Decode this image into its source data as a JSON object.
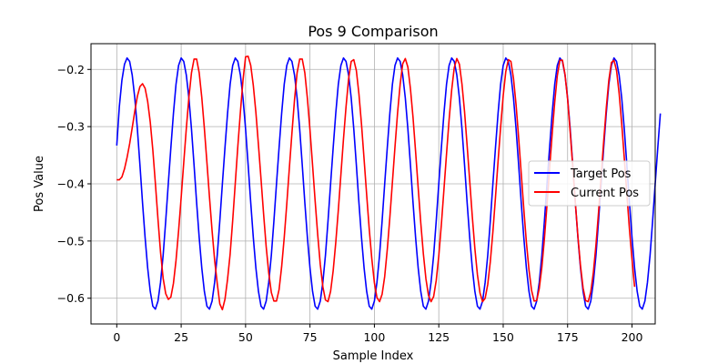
{
  "chart_data": {
    "type": "line",
    "title": "Pos 9 Comparison",
    "xlabel": "Sample Index",
    "ylabel": "Pos Value",
    "xlim": [
      -10,
      209
    ],
    "ylim": [
      -0.645,
      -0.155
    ],
    "xticks": [
      0,
      25,
      50,
      75,
      100,
      125,
      150,
      175,
      200
    ],
    "xtick_labels": [
      "0",
      "25",
      "50",
      "75",
      "100",
      "125",
      "150",
      "175",
      "200"
    ],
    "yticks": [
      -0.6,
      -0.5,
      -0.4,
      -0.3,
      -0.2
    ],
    "ytick_labels": [
      "−0.6",
      "−0.5",
      "−0.4",
      "−0.3",
      "−0.2"
    ],
    "grid": true,
    "legend_position": "center-right",
    "series": [
      {
        "name": "Target Pos",
        "color": "#0000ff",
        "x_start": 0,
        "x_step": 1,
        "values": [
          -0.333,
          -0.265,
          -0.219,
          -0.191,
          -0.18,
          -0.186,
          -0.21,
          -0.25,
          -0.304,
          -0.367,
          -0.433,
          -0.494,
          -0.547,
          -0.588,
          -0.614,
          -0.619,
          -0.605,
          -0.572,
          -0.525,
          -0.465,
          -0.4,
          -0.337,
          -0.277,
          -0.226,
          -0.193,
          -0.18,
          -0.186,
          -0.21,
          -0.25,
          -0.304,
          -0.367,
          -0.433,
          -0.494,
          -0.547,
          -0.588,
          -0.614,
          -0.619,
          -0.605,
          -0.572,
          -0.525,
          -0.465,
          -0.4,
          -0.337,
          -0.277,
          -0.226,
          -0.193,
          -0.18,
          -0.186,
          -0.21,
          -0.25,
          -0.304,
          -0.367,
          -0.433,
          -0.494,
          -0.547,
          -0.588,
          -0.614,
          -0.619,
          -0.605,
          -0.572,
          -0.525,
          -0.465,
          -0.4,
          -0.337,
          -0.277,
          -0.226,
          -0.193,
          -0.18,
          -0.186,
          -0.21,
          -0.25,
          -0.304,
          -0.367,
          -0.433,
          -0.494,
          -0.547,
          -0.588,
          -0.614,
          -0.619,
          -0.605,
          -0.572,
          -0.525,
          -0.465,
          -0.4,
          -0.337,
          -0.277,
          -0.226,
          -0.193,
          -0.18,
          -0.186,
          -0.21,
          -0.25,
          -0.304,
          -0.367,
          -0.433,
          -0.494,
          -0.547,
          -0.588,
          -0.614,
          -0.619,
          -0.605,
          -0.572,
          -0.525,
          -0.465,
          -0.4,
          -0.337,
          -0.277,
          -0.226,
          -0.193,
          -0.18,
          -0.186,
          -0.21,
          -0.25,
          -0.304,
          -0.367,
          -0.433,
          -0.494,
          -0.547,
          -0.588,
          -0.614,
          -0.619,
          -0.605,
          -0.572,
          -0.525,
          -0.465,
          -0.4,
          -0.337,
          -0.277,
          -0.226,
          -0.193,
          -0.18,
          -0.186,
          -0.21,
          -0.25,
          -0.304,
          -0.367,
          -0.433,
          -0.494,
          -0.547,
          -0.588,
          -0.614,
          -0.619,
          -0.605,
          -0.572,
          -0.525,
          -0.465,
          -0.4,
          -0.337,
          -0.277,
          -0.226,
          -0.193,
          -0.18,
          -0.186,
          -0.21,
          -0.25,
          -0.304,
          -0.367,
          -0.433,
          -0.494,
          -0.547,
          -0.588,
          -0.614,
          -0.619,
          -0.605,
          -0.572,
          -0.525,
          -0.465,
          -0.4,
          -0.337,
          -0.277,
          -0.226,
          -0.193,
          -0.18,
          -0.186,
          -0.21,
          -0.25,
          -0.304,
          -0.367,
          -0.433,
          -0.494,
          -0.547,
          -0.588,
          -0.614,
          -0.619,
          -0.605,
          -0.572,
          -0.525,
          -0.465,
          -0.4,
          -0.337,
          -0.277,
          -0.226,
          -0.193,
          -0.18,
          -0.186,
          -0.21,
          -0.25,
          -0.304,
          -0.367,
          -0.433,
          -0.494,
          -0.547,
          -0.588,
          -0.614,
          -0.619,
          -0.605,
          -0.572,
          -0.525,
          -0.465,
          -0.4,
          -0.337,
          -0.277
        ]
      },
      {
        "name": "Current Pos",
        "color": "#ff0000",
        "x_start": 0,
        "x_step": 1,
        "values": [
          -0.393,
          -0.393,
          -0.388,
          -0.374,
          -0.354,
          -0.33,
          -0.302,
          -0.273,
          -0.247,
          -0.23,
          -0.225,
          -0.233,
          -0.256,
          -0.292,
          -0.341,
          -0.4,
          -0.462,
          -0.52,
          -0.565,
          -0.592,
          -0.602,
          -0.598,
          -0.574,
          -0.534,
          -0.482,
          -0.424,
          -0.363,
          -0.303,
          -0.249,
          -0.206,
          -0.182,
          -0.182,
          -0.206,
          -0.249,
          -0.303,
          -0.363,
          -0.424,
          -0.482,
          -0.534,
          -0.574,
          -0.61,
          -0.62,
          -0.602,
          -0.567,
          -0.523,
          -0.464,
          -0.399,
          -0.334,
          -0.274,
          -0.219,
          -0.178,
          -0.177,
          -0.193,
          -0.228,
          -0.275,
          -0.332,
          -0.392,
          -0.453,
          -0.51,
          -0.556,
          -0.59,
          -0.605,
          -0.605,
          -0.585,
          -0.545,
          -0.494,
          -0.435,
          -0.372,
          -0.311,
          -0.253,
          -0.206,
          -0.182,
          -0.182,
          -0.206,
          -0.251,
          -0.306,
          -0.367,
          -0.43,
          -0.489,
          -0.541,
          -0.58,
          -0.603,
          -0.606,
          -0.588,
          -0.552,
          -0.503,
          -0.446,
          -0.384,
          -0.322,
          -0.265,
          -0.216,
          -0.186,
          -0.183,
          -0.202,
          -0.243,
          -0.296,
          -0.357,
          -0.419,
          -0.479,
          -0.531,
          -0.573,
          -0.599,
          -0.606,
          -0.593,
          -0.562,
          -0.515,
          -0.459,
          -0.397,
          -0.335,
          -0.276,
          -0.226,
          -0.19,
          -0.181,
          -0.196,
          -0.234,
          -0.284,
          -0.344,
          -0.407,
          -0.468,
          -0.522,
          -0.566,
          -0.595,
          -0.606,
          -0.597,
          -0.569,
          -0.526,
          -0.471,
          -0.41,
          -0.348,
          -0.288,
          -0.236,
          -0.197,
          -0.181,
          -0.191,
          -0.226,
          -0.274,
          -0.333,
          -0.395,
          -0.457,
          -0.513,
          -0.559,
          -0.591,
          -0.606,
          -0.6,
          -0.576,
          -0.536,
          -0.484,
          -0.424,
          -0.361,
          -0.301,
          -0.246,
          -0.204,
          -0.183,
          -0.186,
          -0.216,
          -0.262,
          -0.32,
          -0.382,
          -0.444,
          -0.502,
          -0.55,
          -0.586,
          -0.605,
          -0.604,
          -0.583,
          -0.546,
          -0.496,
          -0.437,
          -0.374,
          -0.313,
          -0.257,
          -0.211,
          -0.184,
          -0.184,
          -0.209,
          -0.252,
          -0.309,
          -0.37,
          -0.433,
          -0.492,
          -0.543,
          -0.582,
          -0.604,
          -0.606,
          -0.589,
          -0.555,
          -0.507,
          -0.45,
          -0.388,
          -0.326,
          -0.268,
          -0.219,
          -0.188,
          -0.184,
          -0.202,
          -0.242,
          -0.295,
          -0.355,
          -0.418,
          -0.479,
          -0.532,
          -0.58
        ]
      }
    ]
  }
}
